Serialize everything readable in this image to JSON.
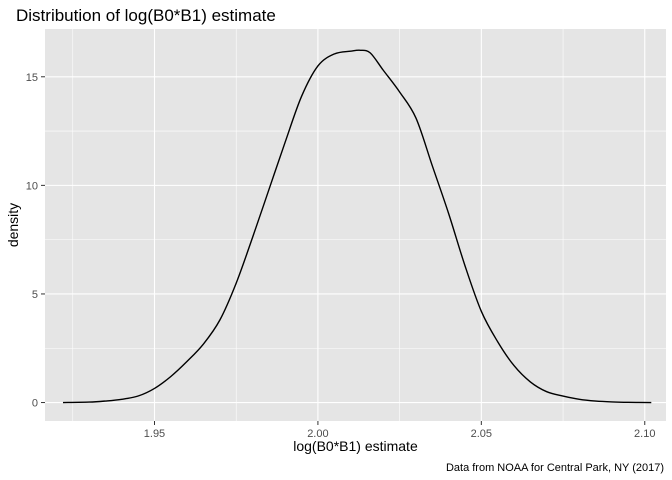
{
  "chart_data": {
    "type": "line",
    "title": "Distribution of log(B0*B1) estimate",
    "xlabel": "log(B0*B1) estimate",
    "ylabel": "density",
    "caption": "Data from NOAA for Central Park, NY (2017)",
    "xlim": [
      1.9165,
      2.1065
    ],
    "ylim": [
      -0.85,
      17.2
    ],
    "x_ticks": [
      1.95,
      2.0,
      2.05,
      2.1
    ],
    "x_tick_labels": [
      "1.95",
      "2.00",
      "2.05",
      "2.10"
    ],
    "y_ticks": [
      0,
      5,
      10,
      15
    ],
    "y_tick_labels": [
      "0",
      "5",
      "10",
      "15"
    ],
    "grid": true,
    "legend": "none",
    "colors": {
      "panel_background": "#e5e5e5",
      "grid_line": "#ffffff",
      "line": "#000000",
      "tick_text": "#4d4d4d",
      "tick_mark": "#333333"
    },
    "series": [
      {
        "x": [
          1.922,
          1.93,
          1.935,
          1.94,
          1.945,
          1.95,
          1.955,
          1.96,
          1.965,
          1.97,
          1.975,
          1.98,
          1.985,
          1.99,
          1.995,
          2.0,
          2.005,
          2.01,
          2.013,
          2.016,
          2.02,
          2.025,
          2.03,
          2.035,
          2.04,
          2.045,
          2.05,
          2.055,
          2.06,
          2.065,
          2.07,
          2.075,
          2.08,
          2.085,
          2.09,
          2.095,
          2.102
        ],
        "y": [
          0.0,
          0.02,
          0.07,
          0.15,
          0.3,
          0.65,
          1.2,
          1.9,
          2.7,
          3.8,
          5.5,
          7.6,
          9.8,
          12.0,
          14.1,
          15.5,
          16.05,
          16.18,
          16.22,
          16.1,
          15.3,
          14.3,
          13.1,
          10.9,
          8.7,
          6.3,
          4.2,
          2.8,
          1.7,
          0.95,
          0.5,
          0.3,
          0.15,
          0.07,
          0.03,
          0.01,
          0.0
        ]
      }
    ]
  }
}
